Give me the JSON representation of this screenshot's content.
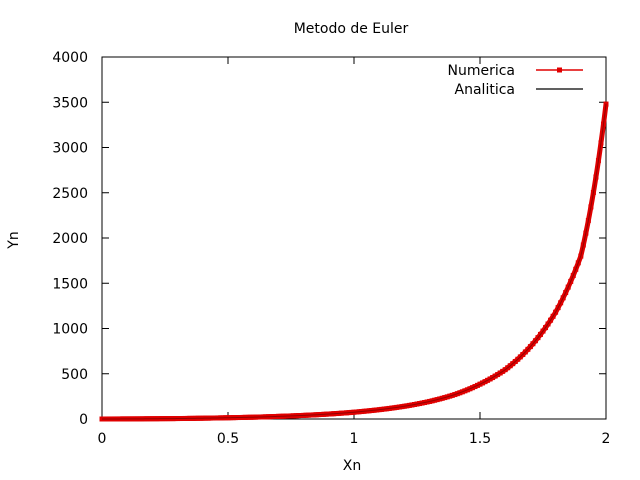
{
  "chart_data": {
    "type": "line",
    "title": "Metodo de Euler",
    "xlabel": "Xn",
    "ylabel": "Yn",
    "xlim": [
      0,
      2
    ],
    "ylim": [
      0,
      4000
    ],
    "x_ticks": [
      "0",
      "0.5",
      "1",
      "1.5",
      "2"
    ],
    "y_ticks": [
      "0",
      "500",
      "1000",
      "1500",
      "2000",
      "2500",
      "3000",
      "3500",
      "4000"
    ],
    "grid": false,
    "legend_position": "top-right",
    "series": [
      {
        "name": "Numerica",
        "color": "#e00000",
        "marker": "square",
        "x": [
          0,
          0.1,
          0.2,
          0.3,
          0.4,
          0.5,
          0.6,
          0.7,
          0.8,
          0.9,
          1.0,
          1.1,
          1.2,
          1.3,
          1.4,
          1.5,
          1.6,
          1.7,
          1.8,
          1.9,
          2.0
        ],
        "y": [
          0,
          1,
          3,
          5,
          9,
          14,
          20,
          29,
          40,
          55,
          75,
          103,
          141,
          194,
          270,
          385,
          545,
          800,
          1180,
          1800,
          3480
        ]
      },
      {
        "name": "Analitica",
        "color": "#000000",
        "marker": "none",
        "x": [
          0,
          0.1,
          0.2,
          0.3,
          0.4,
          0.5,
          0.6,
          0.7,
          0.8,
          0.9,
          1.0,
          1.1,
          1.2,
          1.3,
          1.4,
          1.5,
          1.6,
          1.7,
          1.8,
          1.9,
          2.0
        ],
        "y": [
          0,
          1,
          3,
          5,
          9,
          14,
          20,
          29,
          40,
          55,
          75,
          103,
          141,
          194,
          270,
          385,
          545,
          800,
          1180,
          1800,
          3480
        ]
      }
    ]
  }
}
